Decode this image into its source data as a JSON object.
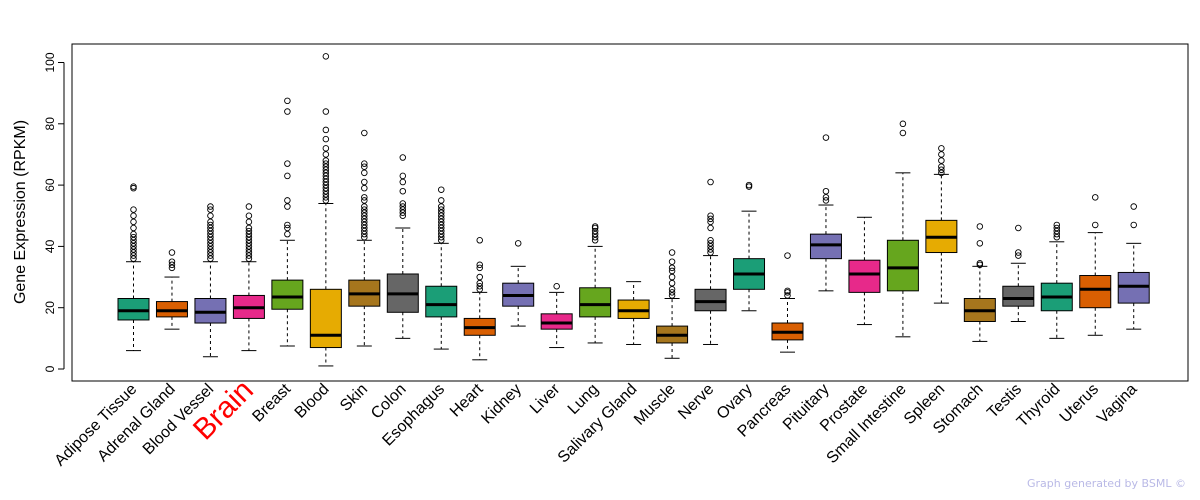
{
  "chart_data": {
    "type": "boxplot",
    "ylabel": "Gene Expression (RPKM)",
    "ylim": [
      0,
      105
    ],
    "yticks": [
      0,
      20,
      40,
      60,
      80,
      100
    ],
    "highlight": "Brain",
    "categories": [
      "Adipose Tissue",
      "Adrenal Gland",
      "Blood Vessel",
      "Brain",
      "Breast",
      "Blood",
      "Skin",
      "Colon",
      "Esophagus",
      "Heart",
      "Kidney",
      "Liver",
      "Lung",
      "Salivary Gland",
      "Muscle",
      "Nerve",
      "Ovary",
      "Pancreas",
      "Pituitary",
      "Prostate",
      "Small Intestine",
      "Spleen",
      "Stomach",
      "Testis",
      "Thyroid",
      "Uterus",
      "Vagina"
    ],
    "colors": [
      "#1b9e77",
      "#d95f02",
      "#7570b3",
      "#e7298a",
      "#66a61e",
      "#e6ab02",
      "#a6761d",
      "#666666",
      "#1b9e77",
      "#d95f02",
      "#7570b3",
      "#e7298a",
      "#66a61e",
      "#e6ab02",
      "#a6761d",
      "#666666",
      "#1b9e77",
      "#d95f02",
      "#7570b3",
      "#e7298a",
      "#66a61e",
      "#e6ab02",
      "#a6761d",
      "#666666",
      "#1b9e77",
      "#d95f02",
      "#7570b3"
    ],
    "boxes": [
      {
        "min": 6,
        "q1": 16,
        "median": 19,
        "q3": 23,
        "max": 35,
        "outliers": [
          36,
          37,
          38,
          39,
          40,
          41,
          42,
          43,
          44,
          46,
          48,
          50,
          52,
          59,
          59.5
        ]
      },
      {
        "min": 13,
        "q1": 17,
        "median": 19,
        "q3": 22,
        "max": 30,
        "outliers": [
          33,
          34,
          35,
          38
        ]
      },
      {
        "min": 4,
        "q1": 15,
        "median": 18.5,
        "q3": 23,
        "max": 35,
        "outliers": [
          36,
          37,
          38,
          39,
          40,
          41,
          42,
          43,
          44,
          45,
          46,
          47,
          48,
          50,
          52,
          53
        ]
      },
      {
        "min": 6,
        "q1": 16.5,
        "median": 20,
        "q3": 24,
        "max": 35,
        "outliers": [
          36,
          37,
          38,
          39,
          40,
          41,
          42,
          43,
          44,
          45,
          46,
          48,
          50,
          53
        ]
      },
      {
        "min": 7.5,
        "q1": 19.5,
        "median": 23.5,
        "q3": 29,
        "max": 42,
        "outliers": [
          44,
          46,
          47,
          53,
          55,
          63,
          67,
          84,
          87.5
        ]
      },
      {
        "min": 1,
        "q1": 7,
        "median": 11,
        "q3": 26,
        "max": 54,
        "outliers": [
          55,
          56,
          57,
          58,
          59,
          60,
          61,
          62,
          63,
          64,
          65,
          66,
          67,
          68,
          70,
          72,
          75,
          78,
          84,
          102
        ]
      },
      {
        "min": 7.5,
        "q1": 20.5,
        "median": 24.5,
        "q3": 29,
        "max": 42,
        "outliers": [
          43,
          44,
          45,
          46,
          47,
          48,
          49,
          50,
          51,
          52,
          53,
          55,
          56,
          59,
          61,
          64,
          66,
          67,
          77
        ]
      },
      {
        "min": 10,
        "q1": 18.5,
        "median": 24.5,
        "q3": 31,
        "max": 46,
        "outliers": [
          50,
          51,
          52,
          53,
          54,
          58,
          61,
          63,
          69
        ]
      },
      {
        "min": 6.5,
        "q1": 17,
        "median": 21,
        "q3": 27,
        "max": 41,
        "outliers": [
          42,
          43,
          44,
          45,
          46,
          47,
          48,
          49,
          50,
          51,
          52,
          53,
          55,
          58.5
        ]
      },
      {
        "min": 3,
        "q1": 11,
        "median": 13.5,
        "q3": 16.5,
        "max": 25,
        "outliers": [
          26,
          27,
          28,
          30,
          33,
          34,
          42
        ]
      },
      {
        "min": 14,
        "q1": 20.5,
        "median": 24,
        "q3": 28,
        "max": 33.5,
        "outliers": [
          41
        ]
      },
      {
        "min": 7,
        "q1": 13,
        "median": 15,
        "q3": 18,
        "max": 25,
        "outliers": [
          27
        ]
      },
      {
        "min": 8.5,
        "q1": 17,
        "median": 21,
        "q3": 26.5,
        "max": 40,
        "outliers": [
          42,
          43,
          44,
          45,
          46,
          46.5
        ]
      },
      {
        "min": 8,
        "q1": 16.5,
        "median": 19,
        "q3": 22.5,
        "max": 28.5,
        "outliers": []
      },
      {
        "min": 3.5,
        "q1": 8.5,
        "median": 11,
        "q3": 14,
        "max": 23,
        "outliers": [
          24,
          25,
          26,
          28,
          30,
          32,
          33,
          35,
          38
        ]
      },
      {
        "min": 8,
        "q1": 19,
        "median": 22,
        "q3": 26,
        "max": 37,
        "outliers": [
          38,
          39,
          40,
          41,
          42,
          46,
          48,
          49,
          50,
          61
        ]
      },
      {
        "min": 19,
        "q1": 26,
        "median": 31,
        "q3": 36,
        "max": 51.5,
        "outliers": [
          59.5,
          60
        ]
      },
      {
        "min": 5.5,
        "q1": 9.5,
        "median": 12,
        "q3": 15,
        "max": 23,
        "outliers": [
          24,
          25,
          25.5,
          37
        ]
      },
      {
        "min": 25.5,
        "q1": 36,
        "median": 40.5,
        "q3": 44,
        "max": 53.5,
        "outliers": [
          55,
          56,
          58,
          75.5
        ]
      },
      {
        "min": 14.5,
        "q1": 25,
        "median": 31,
        "q3": 35.5,
        "max": 49.5,
        "outliers": []
      },
      {
        "min": 10.5,
        "q1": 25.5,
        "median": 33,
        "q3": 42,
        "max": 64,
        "outliers": [
          77,
          80
        ]
      },
      {
        "min": 21.5,
        "q1": 38,
        "median": 43,
        "q3": 48.5,
        "max": 63.5,
        "outliers": [
          64,
          65,
          66,
          68,
          70,
          72
        ]
      },
      {
        "min": 9,
        "q1": 15.5,
        "median": 19,
        "q3": 23,
        "max": 33.5,
        "outliers": [
          34,
          34.5,
          41,
          46.5
        ]
      },
      {
        "min": 15.5,
        "q1": 20.5,
        "median": 23,
        "q3": 27,
        "max": 34.5,
        "outliers": [
          37,
          38,
          46
        ]
      },
      {
        "min": 10,
        "q1": 19,
        "median": 23.5,
        "q3": 28,
        "max": 41.5,
        "outliers": [
          43,
          44,
          45,
          46,
          47
        ]
      },
      {
        "min": 11,
        "q1": 20,
        "median": 26,
        "q3": 30.5,
        "max": 44.5,
        "outliers": [
          47,
          56
        ]
      },
      {
        "min": 13,
        "q1": 21.5,
        "median": 27,
        "q3": 31.5,
        "max": 41,
        "outliers": [
          47,
          53
        ]
      }
    ]
  },
  "footer": {
    "credit": "Graph generated by BSML ©"
  }
}
